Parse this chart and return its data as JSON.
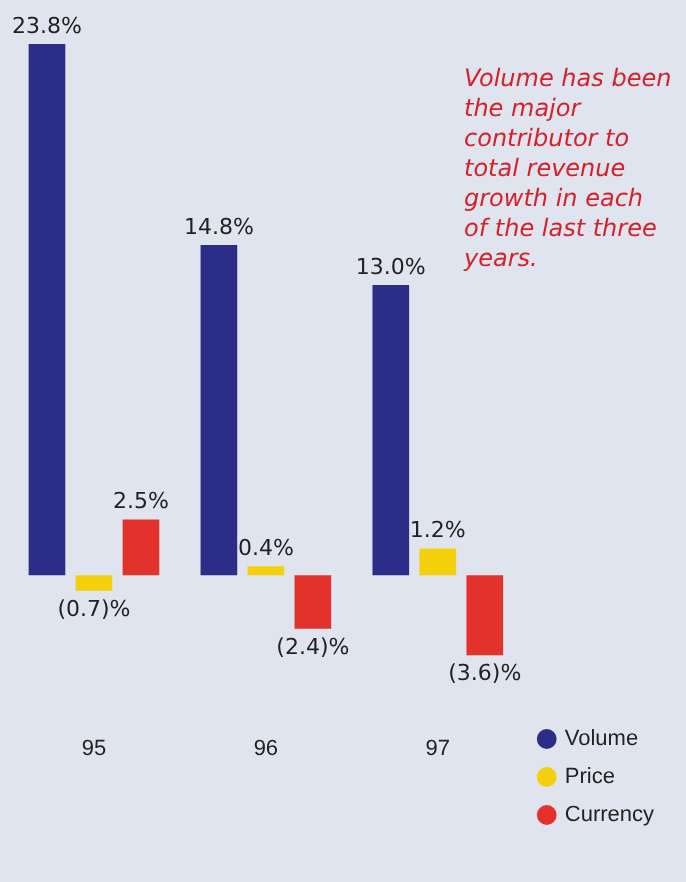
{
  "chart_data": {
    "type": "bar",
    "categories": [
      "95",
      "96",
      "97"
    ],
    "series": [
      {
        "name": "Volume",
        "color": "#2b2d86",
        "values": [
          23.8,
          14.8,
          13.0
        ],
        "value_labels": [
          "23.8%",
          "14.8%",
          "13.0%"
        ]
      },
      {
        "name": "Price",
        "color": "#f4cf0c",
        "values": [
          -0.7,
          0.4,
          1.2
        ],
        "value_labels": [
          "(0.7)%",
          "0.4%",
          "1.2%"
        ]
      },
      {
        "name": "Currency",
        "color": "#e2322b",
        "values": [
          2.5,
          -2.4,
          -3.6
        ],
        "value_labels": [
          "2.5%",
          "(2.4)%",
          "(3.6)%"
        ]
      }
    ],
    "tick_labels": "x",
    "grid": false,
    "legend": "bottom right",
    "annotations": [
      "Volume has been the major contributor to total revenue growth in each of the last three years."
    ]
  }
}
